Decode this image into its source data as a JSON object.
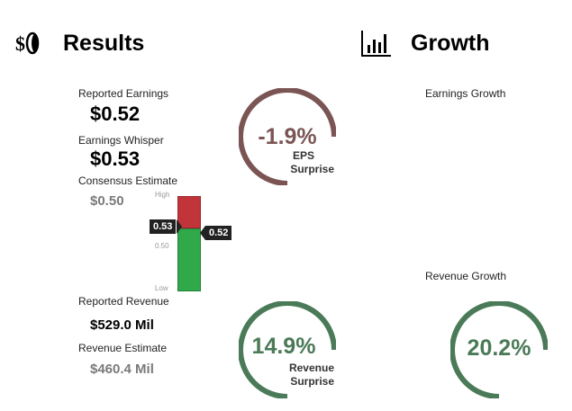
{
  "results": {
    "title": "Results",
    "icon": "coin-icon",
    "reported_earnings": {
      "label": "Reported Earnings",
      "value": "$0.52"
    },
    "earnings_whisper": {
      "label": "Earnings Whisper",
      "value": "$0.53"
    },
    "consensus_estimate": {
      "label": "Consensus Estimate",
      "value": "$0.50"
    },
    "reported_revenue": {
      "label": "Reported Revenue",
      "value": "$529.0 Mil"
    },
    "revenue_estimate": {
      "label": "Revenue Estimate",
      "value": "$460.4 Mil"
    }
  },
  "range_bar": {
    "high_label": "High",
    "mid_label": "0.50",
    "low_label": "Low",
    "whisper_tag": "0.53",
    "reported_tag": "0.52",
    "colors": {
      "above": "#c0343a",
      "below": "#2fa94a"
    }
  },
  "eps_gauge": {
    "value": "-1.9%",
    "line1": "EPS",
    "line2": "Surprise",
    "color": "#7a5554"
  },
  "revenue_gauge": {
    "value": "14.9%",
    "line1": "Revenue",
    "line2": "Surprise",
    "color": "#4a7a57"
  },
  "growth": {
    "title": "Growth",
    "icon": "bar-chart-icon",
    "earnings_growth_label": "Earnings Growth",
    "revenue_growth_label": "Revenue Growth",
    "revenue_growth_value": "20.2%",
    "color": "#4a7a57"
  }
}
